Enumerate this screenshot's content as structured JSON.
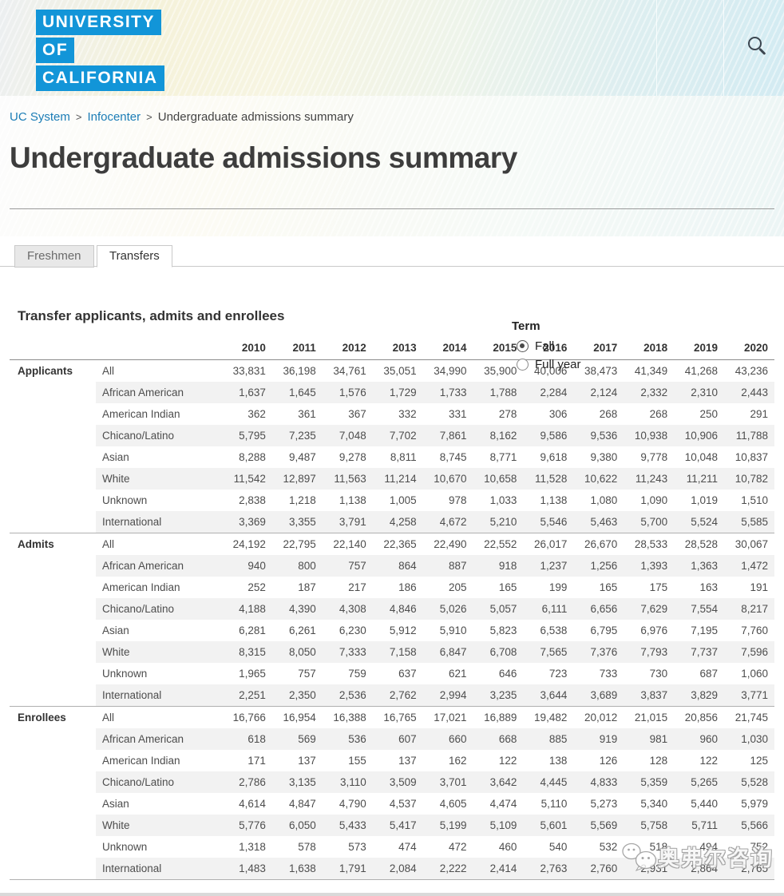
{
  "header": {
    "logo_lines": [
      "UNIVERSITY",
      "OF",
      "CALIFORNIA"
    ],
    "brand_blue": "#1295D8"
  },
  "breadcrumb": {
    "separator": ">",
    "items": [
      "UC System",
      "Infocenter",
      "Undergraduate admissions summary"
    ]
  },
  "page_title": "Undergraduate admissions summary",
  "tabs": [
    {
      "label": "Freshmen",
      "active": false
    },
    {
      "label": "Transfers",
      "active": true
    }
  ],
  "section_heading": "Transfer applicants, admits and enrollees",
  "term_filter": {
    "label": "Term",
    "options": [
      {
        "label": "Fall",
        "selected": true
      },
      {
        "label": "Full year",
        "selected": false
      }
    ]
  },
  "link_blue": "#1b7db6",
  "watermark_text": "奥弗尔咨询",
  "table": {
    "year_columns": [
      "2010",
      "2011",
      "2012",
      "2013",
      "2014",
      "2015",
      "2016",
      "2017",
      "2018",
      "2019",
      "2020"
    ],
    "groups": [
      {
        "label": "Applicants",
        "rows": [
          {
            "category": "All",
            "values": [
              "33,831",
              "36,198",
              "34,761",
              "35,051",
              "34,990",
              "35,900",
              "40,006",
              "38,473",
              "41,349",
              "41,268",
              "43,236"
            ]
          },
          {
            "category": "African American",
            "values": [
              "1,637",
              "1,645",
              "1,576",
              "1,729",
              "1,733",
              "1,788",
              "2,284",
              "2,124",
              "2,332",
              "2,310",
              "2,443"
            ]
          },
          {
            "category": "American Indian",
            "values": [
              "362",
              "361",
              "367",
              "332",
              "331",
              "278",
              "306",
              "268",
              "268",
              "250",
              "291"
            ]
          },
          {
            "category": "Chicano/Latino",
            "values": [
              "5,795",
              "7,235",
              "7,048",
              "7,702",
              "7,861",
              "8,162",
              "9,586",
              "9,536",
              "10,938",
              "10,906",
              "11,788"
            ]
          },
          {
            "category": "Asian",
            "values": [
              "8,288",
              "9,487",
              "9,278",
              "8,811",
              "8,745",
              "8,771",
              "9,618",
              "9,380",
              "9,778",
              "10,048",
              "10,837"
            ]
          },
          {
            "category": "White",
            "values": [
              "11,542",
              "12,897",
              "11,563",
              "11,214",
              "10,670",
              "10,658",
              "11,528",
              "10,622",
              "11,243",
              "11,211",
              "10,782"
            ]
          },
          {
            "category": "Unknown",
            "values": [
              "2,838",
              "1,218",
              "1,138",
              "1,005",
              "978",
              "1,033",
              "1,138",
              "1,080",
              "1,090",
              "1,019",
              "1,510"
            ]
          },
          {
            "category": "International",
            "values": [
              "3,369",
              "3,355",
              "3,791",
              "4,258",
              "4,672",
              "5,210",
              "5,546",
              "5,463",
              "5,700",
              "5,524",
              "5,585"
            ]
          }
        ]
      },
      {
        "label": "Admits",
        "rows": [
          {
            "category": "All",
            "values": [
              "24,192",
              "22,795",
              "22,140",
              "22,365",
              "22,490",
              "22,552",
              "26,017",
              "26,670",
              "28,533",
              "28,528",
              "30,067"
            ]
          },
          {
            "category": "African American",
            "values": [
              "940",
              "800",
              "757",
              "864",
              "887",
              "918",
              "1,237",
              "1,256",
              "1,393",
              "1,363",
              "1,472"
            ]
          },
          {
            "category": "American Indian",
            "values": [
              "252",
              "187",
              "217",
              "186",
              "205",
              "165",
              "199",
              "165",
              "175",
              "163",
              "191"
            ]
          },
          {
            "category": "Chicano/Latino",
            "values": [
              "4,188",
              "4,390",
              "4,308",
              "4,846",
              "5,026",
              "5,057",
              "6,111",
              "6,656",
              "7,629",
              "7,554",
              "8,217"
            ]
          },
          {
            "category": "Asian",
            "values": [
              "6,281",
              "6,261",
              "6,230",
              "5,912",
              "5,910",
              "5,823",
              "6,538",
              "6,795",
              "6,976",
              "7,195",
              "7,760"
            ]
          },
          {
            "category": "White",
            "values": [
              "8,315",
              "8,050",
              "7,333",
              "7,158",
              "6,847",
              "6,708",
              "7,565",
              "7,376",
              "7,793",
              "7,737",
              "7,596"
            ]
          },
          {
            "category": "Unknown",
            "values": [
              "1,965",
              "757",
              "759",
              "637",
              "621",
              "646",
              "723",
              "733",
              "730",
              "687",
              "1,060"
            ]
          },
          {
            "category": "International",
            "values": [
              "2,251",
              "2,350",
              "2,536",
              "2,762",
              "2,994",
              "3,235",
              "3,644",
              "3,689",
              "3,837",
              "3,829",
              "3,771"
            ]
          }
        ]
      },
      {
        "label": "Enrollees",
        "rows": [
          {
            "category": "All",
            "values": [
              "16,766",
              "16,954",
              "16,388",
              "16,765",
              "17,021",
              "16,889",
              "19,482",
              "20,012",
              "21,015",
              "20,856",
              "21,745"
            ]
          },
          {
            "category": "African American",
            "values": [
              "618",
              "569",
              "536",
              "607",
              "660",
              "668",
              "885",
              "919",
              "981",
              "960",
              "1,030"
            ]
          },
          {
            "category": "American Indian",
            "values": [
              "171",
              "137",
              "155",
              "137",
              "162",
              "122",
              "138",
              "126",
              "128",
              "122",
              "125"
            ]
          },
          {
            "category": "Chicano/Latino",
            "values": [
              "2,786",
              "3,135",
              "3,110",
              "3,509",
              "3,701",
              "3,642",
              "4,445",
              "4,833",
              "5,359",
              "5,265",
              "5,528"
            ]
          },
          {
            "category": "Asian",
            "values": [
              "4,614",
              "4,847",
              "4,790",
              "4,537",
              "4,605",
              "4,474",
              "5,110",
              "5,273",
              "5,340",
              "5,440",
              "5,979"
            ]
          },
          {
            "category": "White",
            "values": [
              "5,776",
              "6,050",
              "5,433",
              "5,417",
              "5,199",
              "5,109",
              "5,601",
              "5,569",
              "5,758",
              "5,711",
              "5,566"
            ]
          },
          {
            "category": "Unknown",
            "values": [
              "1,318",
              "578",
              "573",
              "474",
              "472",
              "460",
              "540",
              "532",
              "518",
              "494",
              "752"
            ]
          },
          {
            "category": "International",
            "values": [
              "1,483",
              "1,638",
              "1,791",
              "2,084",
              "2,222",
              "2,414",
              "2,763",
              "2,760",
              "2,931",
              "2,864",
              "2,765"
            ]
          }
        ]
      }
    ]
  }
}
